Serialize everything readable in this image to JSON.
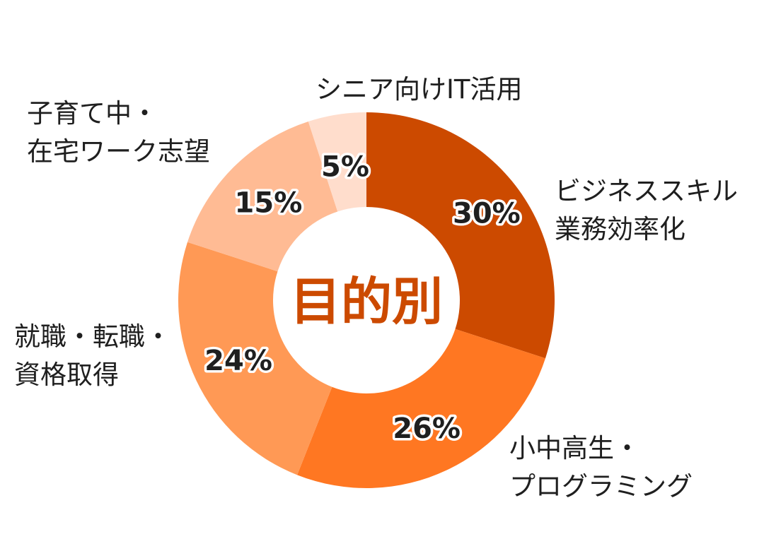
{
  "chart_data": {
    "type": "pie",
    "style": "donut",
    "title": "目的別",
    "categories": [
      [
        "ビジネススキル",
        "業務効率化"
      ],
      [
        "小中高生・",
        "プログラミング"
      ],
      [
        "就職・転職・",
        "資格取得"
      ],
      [
        "子育て中・",
        "在宅ワーク志望"
      ],
      [
        "シニア向けIT活用"
      ]
    ],
    "values": [
      30,
      26,
      24,
      15,
      5
    ],
    "value_labels": [
      "30%",
      "26%",
      "24%",
      "15%",
      "5%"
    ],
    "colors": [
      "#cc4a00",
      "#ff7722",
      "#ff9955",
      "#ffbb94",
      "#ffddcc"
    ],
    "start": "12 o'clock",
    "direction": "clockwise",
    "legend": "none"
  }
}
